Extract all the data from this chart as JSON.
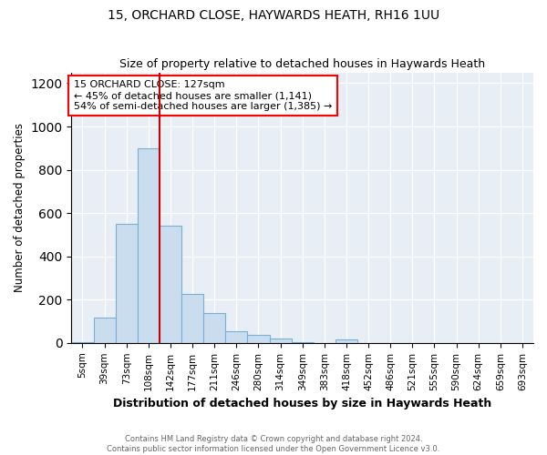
{
  "title": "15, ORCHARD CLOSE, HAYWARDS HEATH, RH16 1UU",
  "subtitle": "Size of property relative to detached houses in Haywards Heath",
  "xlabel": "Distribution of detached houses by size in Haywards Heath",
  "ylabel": "Number of detached properties",
  "bar_labels": [
    "5sqm",
    "39sqm",
    "73sqm",
    "108sqm",
    "142sqm",
    "177sqm",
    "211sqm",
    "246sqm",
    "280sqm",
    "314sqm",
    "349sqm",
    "383sqm",
    "418sqm",
    "452sqm",
    "486sqm",
    "521sqm",
    "555sqm",
    "590sqm",
    "624sqm",
    "659sqm",
    "693sqm"
  ],
  "bar_values": [
    5,
    115,
    550,
    900,
    540,
    225,
    140,
    55,
    35,
    20,
    5,
    0,
    15,
    0,
    0,
    0,
    0,
    0,
    0,
    0,
    0
  ],
  "bar_color": "#c9ddef",
  "bar_edgecolor": "#7aafd4",
  "vline_color": "#cc0000",
  "vline_x": 3.5,
  "annotation_title": "15 ORCHARD CLOSE: 127sqm",
  "annotation_line1": "← 45% of detached houses are smaller (1,141)",
  "annotation_line2": "54% of semi-detached houses are larger (1,385) →",
  "ylim": [
    0,
    1250
  ],
  "yticks": [
    0,
    200,
    400,
    600,
    800,
    1000,
    1200
  ],
  "background_color": "#e8eef5",
  "grid_color": "#ffffff",
  "footer1": "Contains HM Land Registry data © Crown copyright and database right 2024.",
  "footer2": "Contains public sector information licensed under the Open Government Licence v3.0."
}
